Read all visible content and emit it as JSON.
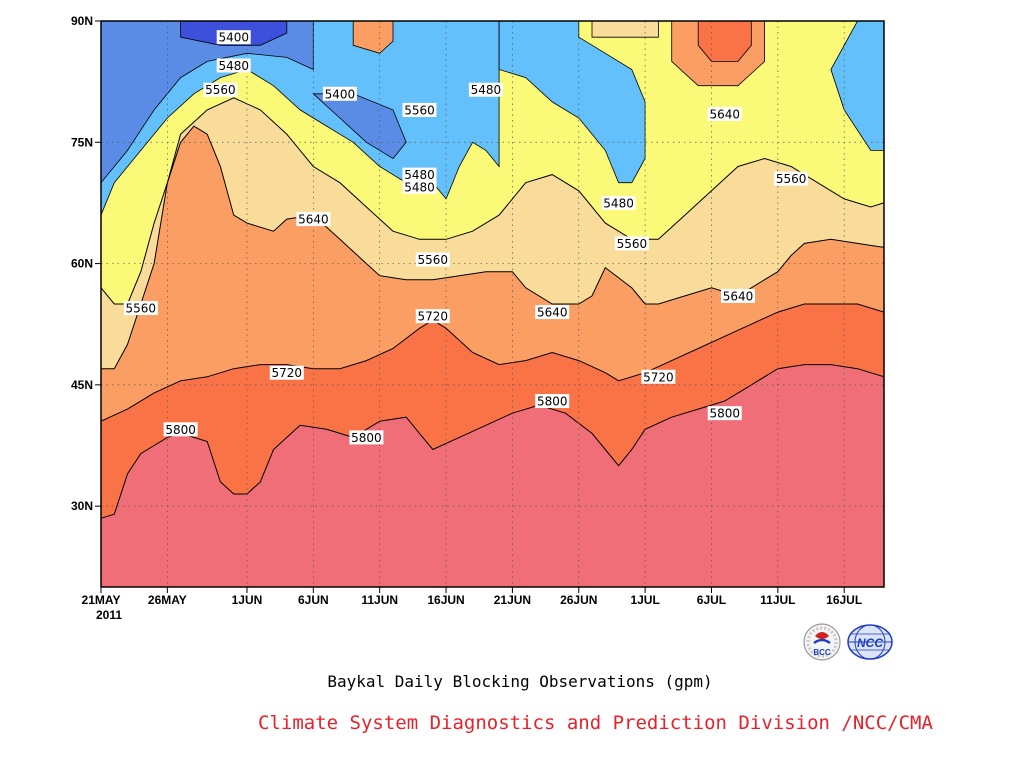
{
  "chart_data": {
    "type": "heatmap",
    "title": "Baykal Daily Blocking Observations (gpm)",
    "xlabel": "",
    "ylabel": "",
    "x_range": [
      "2011-05-21",
      "2011-07-19"
    ],
    "ylim": [
      20,
      90
    ],
    "y_ticks": [
      {
        "value": 30,
        "label": "30N"
      },
      {
        "value": 45,
        "label": "45N"
      },
      {
        "value": 60,
        "label": "60N"
      },
      {
        "value": 75,
        "label": "75N"
      },
      {
        "value": 90,
        "label": "90N"
      }
    ],
    "x_ticks": [
      {
        "date": "2011-05-21",
        "label": "21MAY"
      },
      {
        "date": "2011-05-26",
        "label": "26MAY"
      },
      {
        "date": "2011-06-01",
        "label": "1JUN"
      },
      {
        "date": "2011-06-06",
        "label": "6JUN"
      },
      {
        "date": "2011-06-11",
        "label": "11JUN"
      },
      {
        "date": "2011-06-16",
        "label": "16JUN"
      },
      {
        "date": "2011-06-21",
        "label": "21JUN"
      },
      {
        "date": "2011-06-26",
        "label": "26JUN"
      },
      {
        "date": "2011-07-01",
        "label": "1JUL"
      },
      {
        "date": "2011-07-06",
        "label": "6JUL"
      },
      {
        "date": "2011-07-11",
        "label": "11JUL"
      },
      {
        "date": "2011-07-16",
        "label": "16JUL"
      }
    ],
    "x_year_label": "2011",
    "contour_levels": [
      5400,
      5480,
      5560,
      5640,
      5720,
      5800
    ],
    "fill_colors": {
      "below_5400": "#3c50dc",
      "5400_5480": "#5a8ce6",
      "5480_5560": "#64c0fa",
      "5560_5640": "#fafa78",
      "5640_5720": "#fadc9a",
      "5720_5800": "#fa9e64",
      "5800_5880": "#fa7346",
      "above_5880": "#f06e78"
    },
    "contours": [
      {
        "level": 5800,
        "points": [
          [
            "2011-05-21",
            28.5
          ],
          [
            "2011-05-22",
            29
          ],
          [
            "2011-05-23",
            34
          ],
          [
            "2011-05-24",
            36.5
          ],
          [
            "2011-05-25",
            37.5
          ],
          [
            "2011-05-26",
            38.5
          ],
          [
            "2011-05-27",
            39
          ],
          [
            "2011-05-28",
            38.5
          ],
          [
            "2011-05-29",
            38
          ],
          [
            "2011-05-30",
            33
          ],
          [
            "2011-05-31",
            31.5
          ],
          [
            "2011-06-01",
            31.5
          ],
          [
            "2011-06-02",
            33
          ],
          [
            "2011-06-03",
            37
          ],
          [
            "2011-06-05",
            40
          ],
          [
            "2011-06-07",
            39.5
          ],
          [
            "2011-06-09",
            38.5
          ],
          [
            "2011-06-11",
            40.5
          ],
          [
            "2011-06-13",
            41
          ],
          [
            "2011-06-14",
            39
          ],
          [
            "2011-06-15",
            37
          ],
          [
            "2011-06-17",
            38.5
          ],
          [
            "2011-06-19",
            40
          ],
          [
            "2011-06-21",
            41.5
          ],
          [
            "2011-06-23",
            42.5
          ],
          [
            "2011-06-25",
            41.5
          ],
          [
            "2011-06-27",
            39
          ],
          [
            "2011-06-28",
            37
          ],
          [
            "2011-06-29",
            35
          ],
          [
            "2011-06-30",
            37
          ],
          [
            "2011-07-01",
            39.5
          ],
          [
            "2011-07-03",
            41
          ],
          [
            "2011-07-05",
            42
          ],
          [
            "2011-07-07",
            43
          ],
          [
            "2011-07-09",
            45
          ],
          [
            "2011-07-11",
            47
          ],
          [
            "2011-07-13",
            47.5
          ],
          [
            "2011-07-15",
            47.5
          ],
          [
            "2011-07-17",
            47
          ],
          [
            "2011-07-19",
            46
          ]
        ]
      },
      {
        "level": 5720,
        "points": [
          [
            "2011-05-21",
            40.5
          ],
          [
            "2011-05-23",
            42
          ],
          [
            "2011-05-25",
            44
          ],
          [
            "2011-05-27",
            45.5
          ],
          [
            "2011-05-29",
            46
          ],
          [
            "2011-05-31",
            47
          ],
          [
            "2011-06-02",
            47.5
          ],
          [
            "2011-06-04",
            47.5
          ],
          [
            "2011-06-06",
            47
          ],
          [
            "2011-06-08",
            47
          ],
          [
            "2011-06-10",
            48
          ],
          [
            "2011-06-12",
            49.5
          ],
          [
            "2011-06-14",
            52
          ],
          [
            "2011-06-15",
            53
          ],
          [
            "2011-06-16",
            52
          ],
          [
            "2011-06-18",
            49
          ],
          [
            "2011-06-20",
            47.5
          ],
          [
            "2011-06-22",
            48
          ],
          [
            "2011-06-24",
            49
          ],
          [
            "2011-06-26",
            48
          ],
          [
            "2011-06-28",
            46.5
          ],
          [
            "2011-06-29",
            45.5
          ],
          [
            "2011-07-01",
            46.5
          ],
          [
            "2011-07-03",
            48
          ],
          [
            "2011-07-05",
            49.5
          ],
          [
            "2011-07-07",
            51
          ],
          [
            "2011-07-09",
            52.5
          ],
          [
            "2011-07-11",
            54
          ],
          [
            "2011-07-13",
            55
          ],
          [
            "2011-07-15",
            55
          ],
          [
            "2011-07-17",
            55
          ],
          [
            "2011-07-19",
            54
          ]
        ]
      },
      {
        "level": 5640,
        "points": [
          [
            "2011-05-21",
            47
          ],
          [
            "2011-05-22",
            47
          ],
          [
            "2011-05-23",
            50
          ],
          [
            "2011-05-25",
            60
          ],
          [
            "2011-05-26",
            70
          ],
          [
            "2011-05-27",
            75
          ],
          [
            "2011-05-28",
            77
          ],
          [
            "2011-05-29",
            76
          ],
          [
            "2011-05-30",
            72
          ],
          [
            "2011-05-31",
            66
          ],
          [
            "2011-06-01",
            65
          ],
          [
            "2011-06-03",
            64
          ],
          [
            "2011-06-04",
            65.5
          ],
          [
            "2011-06-06",
            66
          ],
          [
            "2011-06-08",
            63
          ],
          [
            "2011-06-10",
            60
          ],
          [
            "2011-06-11",
            58.5
          ],
          [
            "2011-06-13",
            58
          ],
          [
            "2011-06-15",
            58
          ],
          [
            "2011-06-17",
            58.5
          ],
          [
            "2011-06-19",
            59
          ],
          [
            "2011-06-21",
            59
          ],
          [
            "2011-06-22",
            57
          ],
          [
            "2011-06-24",
            55
          ],
          [
            "2011-06-26",
            55
          ],
          [
            "2011-06-27",
            56
          ],
          [
            "2011-06-28",
            59.5
          ],
          [
            "2011-06-30",
            57
          ],
          [
            "2011-07-01",
            55
          ],
          [
            "2011-07-02",
            55
          ],
          [
            "2011-07-04",
            56
          ],
          [
            "2011-07-06",
            57
          ],
          [
            "2011-07-08",
            56
          ],
          [
            "2011-07-10",
            58
          ],
          [
            "2011-07-11",
            59
          ],
          [
            "2011-07-12",
            61
          ],
          [
            "2011-07-13",
            62.5
          ],
          [
            "2011-07-15",
            63
          ],
          [
            "2011-07-17",
            62.5
          ],
          [
            "2011-07-19",
            62
          ]
        ]
      },
      {
        "level": 5560,
        "points": [
          [
            "2011-05-21",
            57
          ],
          [
            "2011-05-22",
            55
          ],
          [
            "2011-05-23",
            55
          ],
          [
            "2011-05-24",
            59
          ],
          [
            "2011-05-25",
            65
          ],
          [
            "2011-05-26",
            70
          ],
          [
            "2011-05-27",
            76
          ],
          [
            "2011-05-29",
            79
          ],
          [
            "2011-05-31",
            80.5
          ],
          [
            "2011-06-02",
            79
          ],
          [
            "2011-06-04",
            76
          ],
          [
            "2011-06-06",
            72
          ],
          [
            "2011-06-08",
            70
          ],
          [
            "2011-06-10",
            67
          ],
          [
            "2011-06-12",
            64
          ],
          [
            "2011-06-14",
            63
          ],
          [
            "2011-06-16",
            63
          ],
          [
            "2011-06-18",
            64
          ],
          [
            "2011-06-20",
            66
          ],
          [
            "2011-06-22",
            70
          ],
          [
            "2011-06-24",
            71
          ],
          [
            "2011-06-26",
            69
          ],
          [
            "2011-06-28",
            65
          ],
          [
            "2011-06-30",
            63
          ],
          [
            "2011-07-02",
            63
          ],
          [
            "2011-07-04",
            66
          ],
          [
            "2011-07-06",
            69
          ],
          [
            "2011-07-08",
            72
          ],
          [
            "2011-07-10",
            73
          ],
          [
            "2011-07-12",
            72
          ],
          [
            "2011-07-14",
            70
          ],
          [
            "2011-07-16",
            68
          ],
          [
            "2011-07-18",
            67
          ],
          [
            "2011-07-19",
            67.5
          ]
        ]
      }
    ],
    "contour_labels": [
      {
        "text": "5400",
        "date": "2011-05-31",
        "lat": 88
      },
      {
        "text": "5480",
        "date": "2011-05-31",
        "lat": 84.5
      },
      {
        "text": "5560",
        "date": "2011-05-30",
        "lat": 81.5
      },
      {
        "text": "5400",
        "date": "2011-06-08",
        "lat": 81
      },
      {
        "text": "5560",
        "date": "2011-06-14",
        "lat": 79
      },
      {
        "text": "5480",
        "date": "2011-06-19",
        "lat": 81.5
      },
      {
        "text": "5640",
        "date": "2011-07-07",
        "lat": 78.5
      },
      {
        "text": "5480",
        "date": "2011-06-14",
        "lat": 71
      },
      {
        "text": "5480",
        "date": "2011-06-14",
        "lat": 69.5
      },
      {
        "text": "5560",
        "date": "2011-07-12",
        "lat": 70.5
      },
      {
        "text": "5640",
        "date": "2011-06-06",
        "lat": 65.5
      },
      {
        "text": "5480",
        "date": "2011-06-29",
        "lat": 67.5
      },
      {
        "text": "5560",
        "date": "2011-06-30",
        "lat": 62.5
      },
      {
        "text": "5560",
        "date": "2011-06-15",
        "lat": 60.5
      },
      {
        "text": "5560",
        "date": "2011-05-24",
        "lat": 54.5
      },
      {
        "text": "5640",
        "date": "2011-06-24",
        "lat": 54
      },
      {
        "text": "5720",
        "date": "2011-06-15",
        "lat": 53.5
      },
      {
        "text": "5640",
        "date": "2011-07-08",
        "lat": 56
      },
      {
        "text": "5720",
        "date": "2011-06-04",
        "lat": 46.5
      },
      {
        "text": "5720",
        "date": "2011-07-02",
        "lat": 46
      },
      {
        "text": "5800",
        "date": "2011-06-24",
        "lat": 43
      },
      {
        "text": "5800",
        "date": "2011-07-07",
        "lat": 41.5
      },
      {
        "text": "5800",
        "date": "2011-05-27",
        "lat": 39.5
      },
      {
        "text": "5800",
        "date": "2011-06-10",
        "lat": 38.5
      }
    ]
  },
  "footer": {
    "credit": "Climate System Diagnostics and Prediction Division /NCC/CMA",
    "credit_color": "#e8202a",
    "logo_left_text": "BCC",
    "logo_right_text": "NCC"
  }
}
